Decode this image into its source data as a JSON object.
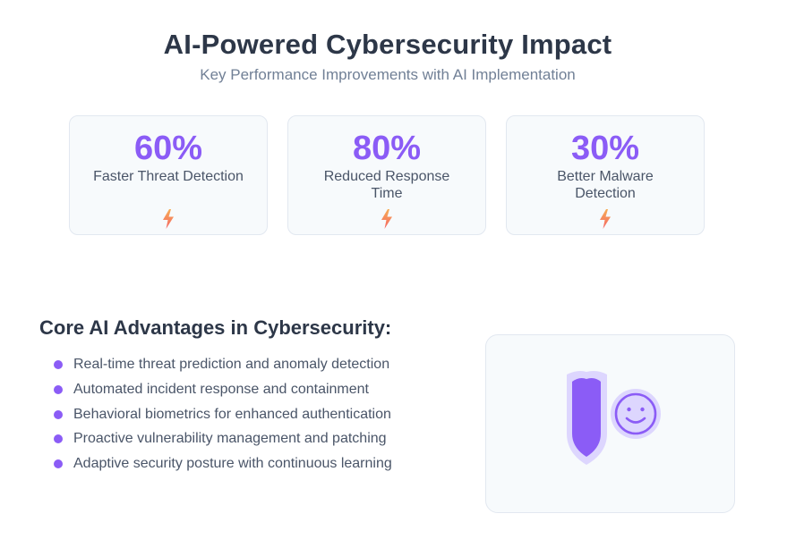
{
  "header": {
    "title": "AI-Powered Cybersecurity Impact",
    "subtitle": "Key Performance Improvements with AI Implementation"
  },
  "stats": [
    {
      "value": "60%",
      "label": "Faster Threat Detection",
      "icon": "lightning-icon"
    },
    {
      "value": "80%",
      "label": "Reduced Response Time",
      "icon": "lightning-icon"
    },
    {
      "value": "30%",
      "label": "Better Malware Detection",
      "icon": "lightning-icon"
    }
  ],
  "advantages": {
    "title": "Core AI Advantages in Cybersecurity:",
    "items": [
      "Real-time threat prediction and anomaly detection",
      "Automated incident response and containment",
      "Behavioral biometrics for enhanced authentication",
      "Proactive vulnerability management and patching",
      "Adaptive security posture with continuous learning"
    ]
  },
  "illustration": {
    "icons": [
      "shield-icon",
      "smiley-face-icon"
    ]
  },
  "colors": {
    "accent": "#8b5cf6",
    "accent_light": "#ddd6fe",
    "bolt_top": "#f6ad55",
    "bolt_bottom": "#f56565",
    "heading": "#2d3748",
    "muted": "#718096",
    "card_bg": "#f7fafc",
    "card_border": "#e2e8f0"
  }
}
